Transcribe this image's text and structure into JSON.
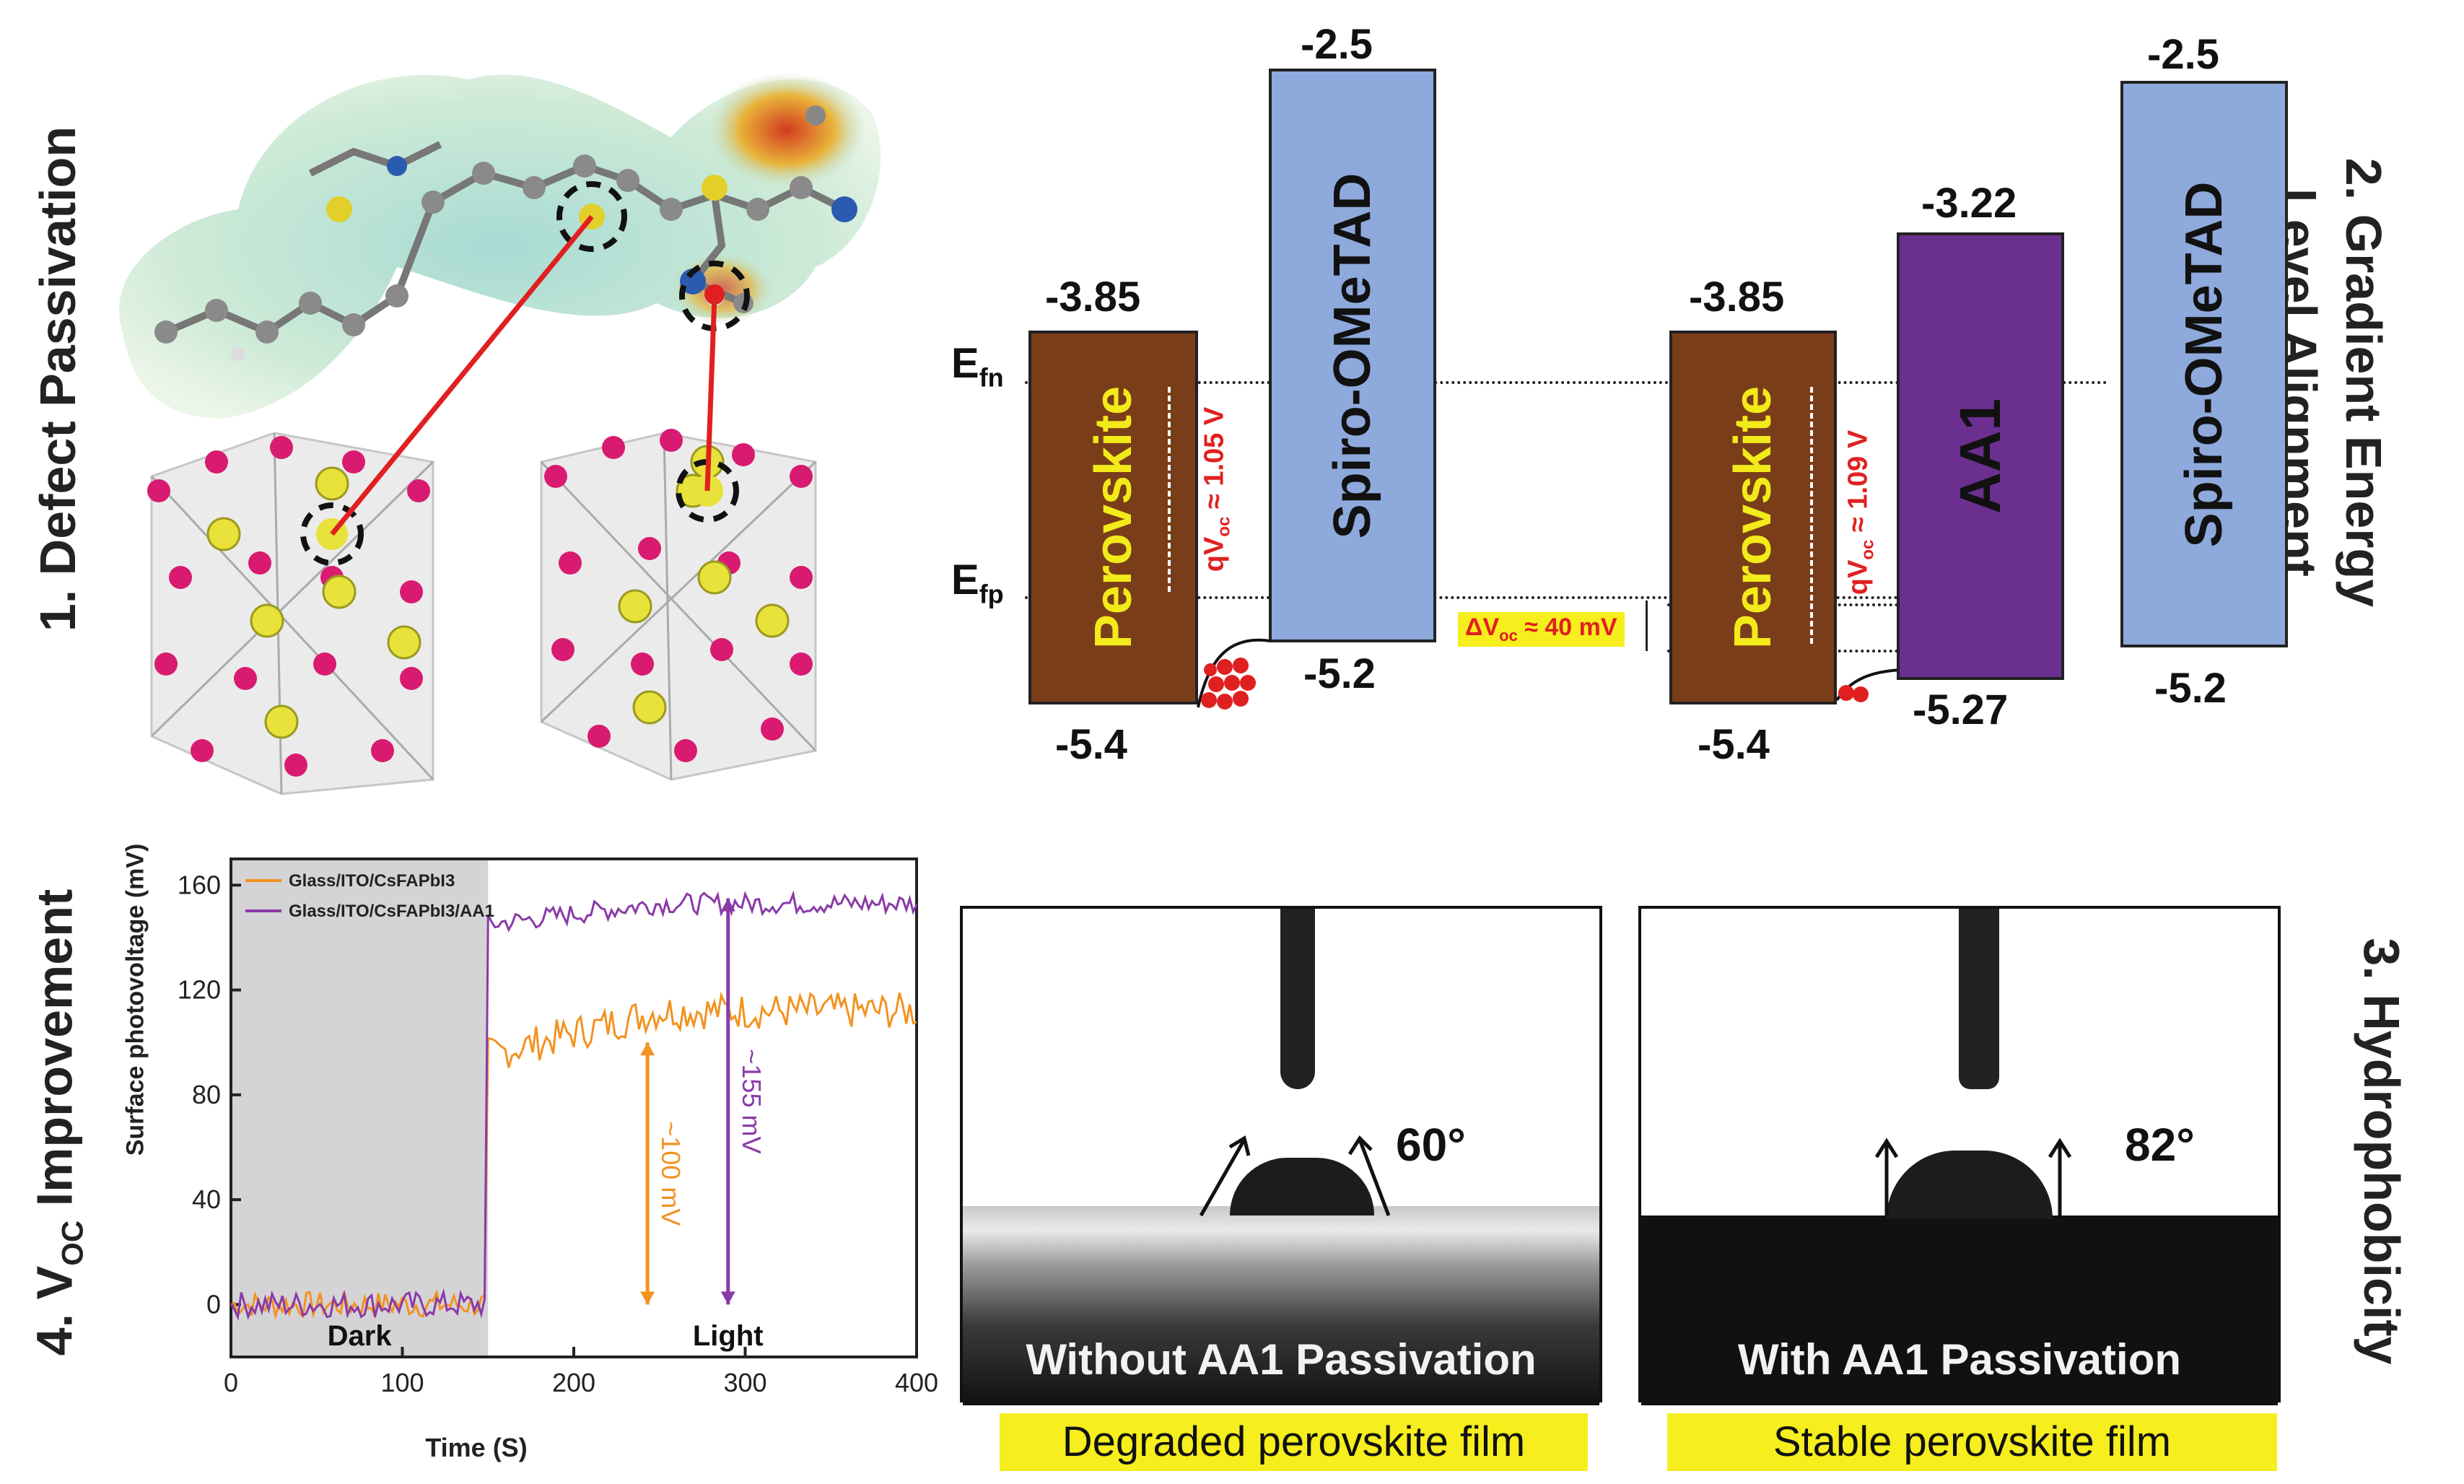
{
  "panels": {
    "p1": "1. Defect Passivation",
    "p2_line1": "2. Gradient Energy",
    "p2_line2": "Level Alignment",
    "p3": "3. Hydrophobicity",
    "p4_prefix": "4. V",
    "p4_sub": "OC",
    "p4_suffix": " Improvement"
  },
  "energy": {
    "left": {
      "perovskite_label": "Perovskite",
      "perovskite_top": "-3.85",
      "perovskite_bottom": "-5.4",
      "spiro_label": "Spiro-OMeTAD",
      "spiro_top": "-2.5",
      "spiro_bottom": "-5.2",
      "qvoc": "qV",
      "qvoc_sub": "oc",
      "qvoc_val": " ≈ 1.05 V"
    },
    "right": {
      "perovskite_label": "Perovskite",
      "perovskite_top": "-3.85",
      "perovskite_bottom": "-5.4",
      "aa1_label": "AA1",
      "aa1_top": "-3.22",
      "aa1_bottom": "-5.27",
      "spiro_label": "Spiro-OMeTAD",
      "spiro_top": "-2.5",
      "spiro_bottom": "-5.2",
      "qvoc": "qV",
      "qvoc_sub": "oc",
      "qvoc_val": " ≈ 1.09 V"
    },
    "efn": "E",
    "efn_sub": "fn",
    "efp": "E",
    "efp_sub": "fp",
    "delta_voc": "ΔV",
    "delta_voc_sub": "oc",
    "delta_voc_val": " ≈ 40 mV",
    "colors": {
      "perovskite": "#7a3d19",
      "spiro": "#8ea9dc",
      "aa1": "#6b2f8f",
      "text_yellow": "#f2ea1a",
      "red": "#e02020"
    }
  },
  "contact": {
    "left_angle": "60°",
    "right_angle": "82°",
    "left_text": "Without AA1 Passivation",
    "right_text": "With AA1 Passivation",
    "left_caption": "Degraded perovskite film",
    "right_caption": "Stable perovskite film"
  },
  "chart_data": {
    "type": "line",
    "ylabel": "Surface photovoltage (mV)",
    "xlabel": "Time (S)",
    "xlim": [
      0,
      400
    ],
    "ylim": [
      -20,
      170
    ],
    "xticks": [
      "0",
      "100",
      "200",
      "300",
      "400"
    ],
    "yticks": [
      "0",
      "40",
      "80",
      "120",
      "160"
    ],
    "dark_label": "Dark",
    "light_label": "Light",
    "dark_region": [
      0,
      150
    ],
    "series": [
      {
        "name": "Glass/ITO/CsFAPbI3",
        "color": "#f39220",
        "level_dark": 0,
        "level_light": 112,
        "step_start": 95
      },
      {
        "name": "Glass/ITO/CsFAPbI3/AA1",
        "color": "#8a3aa8",
        "level_dark": 0,
        "level_light": 153,
        "step_start": 145
      }
    ],
    "legend": [
      "Glass/ITO/CsFAPbI3",
      "Glass/ITO/CsFAPbI3/AA1"
    ],
    "annotations": [
      {
        "text": "~100 mV",
        "x": 243,
        "color": "#f39220"
      },
      {
        "text": "~155 mV",
        "x": 290,
        "color": "#8a3aa8"
      }
    ]
  }
}
